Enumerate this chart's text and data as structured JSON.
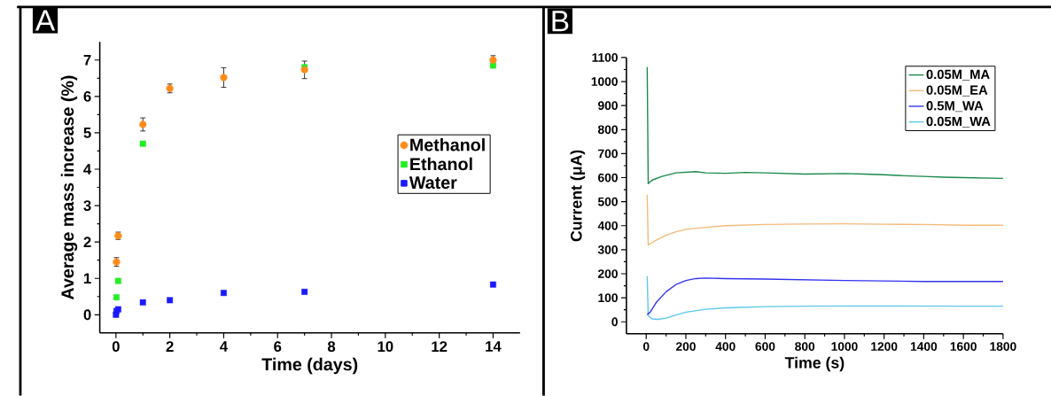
{
  "chart_data": [
    {
      "type": "scatter",
      "title": "A",
      "xlabel": "Time (days)",
      "ylabel": "Average mass increase (%)",
      "xlim": [
        -0.6,
        15
      ],
      "ylim": [
        -0.5,
        7.5
      ],
      "xticks": [
        0,
        2,
        4,
        6,
        8,
        10,
        12,
        14
      ],
      "yticks": [
        0,
        1,
        2,
        3,
        4,
        5,
        6,
        7
      ],
      "legend": "right",
      "series": [
        {
          "name": "Methanol",
          "color": "#ff8c1a",
          "marker": "circle",
          "x": [
            0.02,
            0.083,
            1,
            2,
            4,
            7,
            14
          ],
          "values": [
            1.45,
            2.17,
            5.23,
            6.22,
            6.52,
            6.73,
            7.0
          ],
          "errors": [
            0.12,
            0.1,
            0.18,
            0.12,
            0.27,
            0.24,
            0.12
          ]
        },
        {
          "name": "Ethanol",
          "color": "#22ee22",
          "marker": "square",
          "x": [
            0.02,
            0.083,
            1,
            7,
            14
          ],
          "values": [
            0.48,
            0.93,
            4.7,
            6.8,
            6.85
          ]
        },
        {
          "name": "Water",
          "color": "#1a1aff",
          "marker": "square",
          "x": [
            0,
            0.02,
            0.083,
            1,
            2,
            4,
            7,
            14
          ],
          "values": [
            0.0,
            0.1,
            0.15,
            0.34,
            0.4,
            0.6,
            0.63,
            0.83
          ]
        }
      ]
    },
    {
      "type": "line",
      "title": "B",
      "xlabel": "Time (s)",
      "ylabel": "Current (μA)",
      "xlim": [
        -100,
        1800
      ],
      "ylim": [
        -50,
        1100
      ],
      "xticks": [
        0,
        200,
        400,
        600,
        800,
        1000,
        1200,
        1400,
        1600,
        1800
      ],
      "yticks": [
        0,
        100,
        200,
        300,
        400,
        500,
        600,
        700,
        800,
        900,
        1000,
        1100
      ],
      "legend": "top right",
      "line_style": "solid",
      "series": [
        {
          "name": "0.05M_MA",
          "color": "#1a8a4a",
          "x": [
            5,
            10,
            30,
            80,
            150,
            250,
            300,
            400,
            500,
            600,
            800,
            1000,
            1100,
            1200,
            1300,
            1400,
            1500,
            1600,
            1800
          ],
          "values": [
            1060,
            575,
            590,
            605,
            620,
            625,
            620,
            618,
            622,
            620,
            615,
            617,
            615,
            612,
            608,
            605,
            602,
            600,
            597
          ]
        },
        {
          "name": "0.05M_EA",
          "color": "#f4b97a",
          "x": [
            5,
            10,
            50,
            100,
            150,
            200,
            300,
            400,
            600,
            800,
            1000,
            1200,
            1400,
            1600,
            1800
          ],
          "values": [
            530,
            320,
            340,
            360,
            375,
            385,
            393,
            400,
            405,
            407,
            408,
            406,
            405,
            402,
            402
          ]
        },
        {
          "name": "0.5M_WA",
          "color": "#3333ee",
          "x": [
            5,
            20,
            50,
            100,
            150,
            200,
            250,
            300,
            400,
            600,
            800,
            1000,
            1200,
            1400,
            1800
          ],
          "values": [
            30,
            40,
            80,
            125,
            155,
            172,
            180,
            182,
            180,
            178,
            175,
            172,
            170,
            168,
            168
          ]
        },
        {
          "name": "0.05M_WA",
          "color": "#5bc8e8",
          "x": [
            5,
            10,
            30,
            60,
            100,
            150,
            200,
            300,
            400,
            600,
            800,
            1000,
            1200,
            1600,
            1800
          ],
          "values": [
            190,
            25,
            12,
            10,
            15,
            28,
            40,
            52,
            58,
            63,
            65,
            66,
            66,
            65,
            65
          ]
        }
      ]
    }
  ]
}
